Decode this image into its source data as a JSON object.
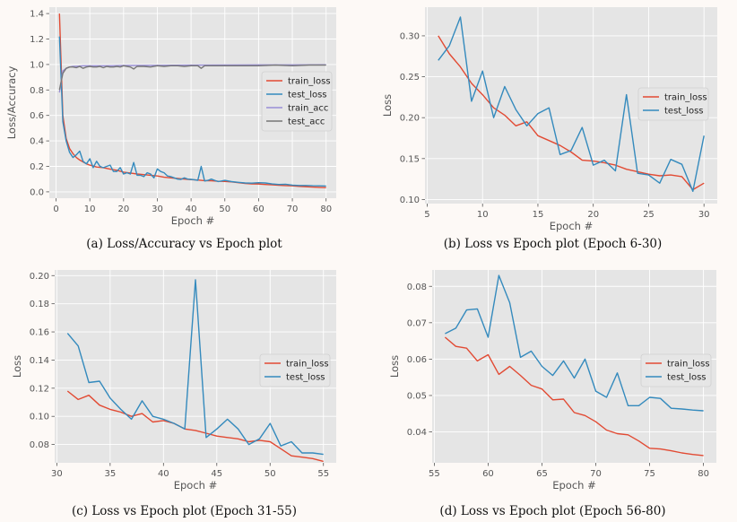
{
  "chart_data": [
    {
      "id": "a",
      "type": "line",
      "caption": "(a) Loss/Accuracy vs Epoch plot",
      "xlabel": "Epoch #",
      "ylabel": "Loss/Accuracy",
      "xlim": [
        -2,
        83
      ],
      "ylim": [
        -0.05,
        1.45
      ],
      "xticks": [
        0,
        10,
        20,
        30,
        40,
        50,
        60,
        70,
        80
      ],
      "yticks": [
        0.0,
        0.2,
        0.4,
        0.6,
        0.8,
        1.0,
        1.2,
        1.4
      ],
      "ytick_labels": [
        "0.0",
        "0.2",
        "0.4",
        "0.6",
        "0.8",
        "1.0",
        "1.2",
        "1.4"
      ],
      "grid": true,
      "legend": "center-right",
      "series": [
        {
          "name": "train_loss",
          "color": "#e24a33",
          "x": [
            1,
            2,
            3,
            4,
            5,
            6,
            7,
            8,
            9,
            10,
            12,
            14,
            16,
            18,
            20,
            22,
            24,
            26,
            28,
            30,
            32,
            34,
            36,
            38,
            40,
            42,
            44,
            46,
            48,
            50,
            52,
            54,
            56,
            58,
            60,
            62,
            64,
            66,
            68,
            70,
            72,
            74,
            76,
            78,
            80
          ],
          "y": [
            1.4,
            0.6,
            0.42,
            0.34,
            0.3,
            0.27,
            0.25,
            0.235,
            0.22,
            0.21,
            0.195,
            0.19,
            0.178,
            0.17,
            0.155,
            0.148,
            0.14,
            0.135,
            0.13,
            0.125,
            0.115,
            0.11,
            0.105,
            0.1,
            0.096,
            0.093,
            0.088,
            0.087,
            0.083,
            0.082,
            0.078,
            0.072,
            0.066,
            0.063,
            0.061,
            0.058,
            0.055,
            0.052,
            0.049,
            0.047,
            0.043,
            0.04,
            0.037,
            0.035,
            0.033
          ]
        },
        {
          "name": "test_loss",
          "color": "#348abd",
          "x": [
            1,
            2,
            3,
            4,
            5,
            6,
            7,
            8,
            9,
            10,
            11,
            12,
            13,
            14,
            15,
            16,
            17,
            18,
            19,
            20,
            21,
            22,
            23,
            24,
            25,
            26,
            27,
            28,
            29,
            30,
            31,
            32,
            33,
            34,
            35,
            36,
            37,
            38,
            39,
            40,
            41,
            42,
            43,
            44,
            45,
            46,
            47,
            48,
            49,
            50,
            52,
            54,
            56,
            58,
            60,
            62,
            64,
            66,
            68,
            70,
            72,
            74,
            76,
            78,
            80
          ],
          "y": [
            1.22,
            0.55,
            0.4,
            0.31,
            0.27,
            0.29,
            0.32,
            0.24,
            0.22,
            0.26,
            0.19,
            0.24,
            0.2,
            0.19,
            0.2,
            0.21,
            0.16,
            0.16,
            0.19,
            0.14,
            0.15,
            0.14,
            0.23,
            0.13,
            0.13,
            0.12,
            0.15,
            0.14,
            0.11,
            0.18,
            0.16,
            0.15,
            0.125,
            0.12,
            0.11,
            0.1,
            0.098,
            0.11,
            0.1,
            0.098,
            0.095,
            0.09,
            0.2,
            0.085,
            0.09,
            0.1,
            0.09,
            0.081,
            0.085,
            0.09,
            0.08,
            0.075,
            0.07,
            0.068,
            0.072,
            0.07,
            0.062,
            0.058,
            0.06,
            0.053,
            0.05,
            0.05,
            0.048,
            0.047,
            0.046
          ]
        },
        {
          "name": "train_acc",
          "color": "#988ed5",
          "x": [
            1,
            2,
            3,
            4,
            5,
            6,
            8,
            10,
            15,
            20,
            30,
            40,
            50,
            60,
            70,
            80
          ],
          "y": [
            0.78,
            0.95,
            0.97,
            0.98,
            0.985,
            0.985,
            0.99,
            0.99,
            0.99,
            0.992,
            0.994,
            0.995,
            0.996,
            0.997,
            0.997,
            0.998
          ]
        },
        {
          "name": "test_acc",
          "color": "#777777",
          "x": [
            1,
            2,
            3,
            4,
            5,
            6,
            7,
            8,
            9,
            10,
            11,
            12,
            13,
            14,
            15,
            16,
            17,
            18,
            19,
            20,
            21,
            22,
            23,
            24,
            26,
            28,
            30,
            32,
            34,
            36,
            38,
            40,
            42,
            43,
            44,
            46,
            48,
            50,
            55,
            60,
            65,
            70,
            75,
            80
          ],
          "y": [
            0.8,
            0.93,
            0.97,
            0.98,
            0.98,
            0.975,
            0.985,
            0.97,
            0.98,
            0.985,
            0.98,
            0.98,
            0.985,
            0.975,
            0.985,
            0.98,
            0.98,
            0.985,
            0.98,
            0.99,
            0.985,
            0.98,
            0.965,
            0.985,
            0.985,
            0.98,
            0.99,
            0.985,
            0.99,
            0.99,
            0.985,
            0.99,
            0.99,
            0.97,
            0.99,
            0.99,
            0.99,
            0.99,
            0.99,
            0.99,
            0.995,
            0.99,
            0.995,
            0.995
          ]
        }
      ]
    },
    {
      "id": "b",
      "type": "line",
      "caption": "(b) Loss vs Epoch plot (Epoch 6-30)",
      "xlabel": "Epoch #",
      "ylabel": "Loss",
      "xlim": [
        4.8,
        31.2
      ],
      "ylim": [
        0.095,
        0.335
      ],
      "xticks": [
        5,
        10,
        15,
        20,
        25,
        30
      ],
      "yticks": [
        0.1,
        0.15,
        0.2,
        0.25,
        0.3
      ],
      "ytick_labels": [
        "0.10",
        "0.15",
        "0.20",
        "0.25",
        "0.30"
      ],
      "grid": true,
      "legend": "center-right",
      "series": [
        {
          "name": "train_loss",
          "color": "#e24a33",
          "x": [
            6,
            7,
            8,
            9,
            10,
            11,
            12,
            13,
            14,
            15,
            16,
            17,
            18,
            19,
            20,
            21,
            22,
            23,
            24,
            25,
            26,
            27,
            28,
            29,
            30
          ],
          "y": [
            0.3,
            0.278,
            0.262,
            0.242,
            0.228,
            0.212,
            0.203,
            0.19,
            0.195,
            0.178,
            0.172,
            0.166,
            0.158,
            0.148,
            0.147,
            0.145,
            0.142,
            0.137,
            0.134,
            0.131,
            0.129,
            0.13,
            0.128,
            0.112,
            0.12
          ]
        },
        {
          "name": "test_loss",
          "color": "#348abd",
          "x": [
            6,
            7,
            8,
            9,
            10,
            11,
            12,
            13,
            14,
            15,
            16,
            17,
            18,
            19,
            20,
            21,
            22,
            23,
            24,
            25,
            26,
            27,
            28,
            29,
            30
          ],
          "y": [
            0.27,
            0.288,
            0.323,
            0.22,
            0.257,
            0.2,
            0.238,
            0.21,
            0.19,
            0.205,
            0.212,
            0.155,
            0.16,
            0.188,
            0.142,
            0.148,
            0.135,
            0.228,
            0.132,
            0.13,
            0.12,
            0.149,
            0.143,
            0.11,
            0.178
          ]
        }
      ]
    },
    {
      "id": "c",
      "type": "line",
      "caption": "(c) Loss vs Epoch plot (Epoch 31-55)",
      "xlabel": "Epoch #",
      "ylabel": "Loss",
      "xlim": [
        29.8,
        56.2
      ],
      "ylim": [
        0.067,
        0.204
      ],
      "xticks": [
        30,
        35,
        40,
        45,
        50,
        55
      ],
      "yticks": [
        0.08,
        0.1,
        0.12,
        0.14,
        0.16,
        0.18,
        0.2
      ],
      "ytick_labels": [
        "0.08",
        "0.10",
        "0.12",
        "0.14",
        "0.16",
        "0.18",
        "0.20"
      ],
      "grid": true,
      "legend": "center-right",
      "series": [
        {
          "name": "train_loss",
          "color": "#e24a33",
          "x": [
            31,
            32,
            33,
            34,
            35,
            36,
            37,
            38,
            39,
            40,
            41,
            42,
            43,
            44,
            45,
            46,
            47,
            48,
            49,
            50,
            51,
            52,
            53,
            54,
            55
          ],
          "y": [
            0.118,
            0.112,
            0.115,
            0.108,
            0.105,
            0.103,
            0.1,
            0.102,
            0.096,
            0.097,
            0.095,
            0.091,
            0.09,
            0.088,
            0.086,
            0.085,
            0.084,
            0.082,
            0.083,
            0.082,
            0.077,
            0.072,
            0.071,
            0.07,
            0.068
          ]
        },
        {
          "name": "test_loss",
          "color": "#348abd",
          "x": [
            31,
            32,
            33,
            34,
            35,
            36,
            37,
            38,
            39,
            40,
            41,
            42,
            43,
            44,
            45,
            46,
            47,
            48,
            49,
            50,
            51,
            52,
            53,
            54,
            55
          ],
          "y": [
            0.159,
            0.15,
            0.124,
            0.125,
            0.113,
            0.105,
            0.098,
            0.111,
            0.1,
            0.098,
            0.095,
            0.091,
            0.197,
            0.085,
            0.091,
            0.098,
            0.091,
            0.08,
            0.084,
            0.095,
            0.079,
            0.082,
            0.074,
            0.074,
            0.073
          ]
        }
      ]
    },
    {
      "id": "d",
      "type": "line",
      "caption": "(d) Loss vs Epoch plot (Epoch 56-80)",
      "xlabel": "Epoch #",
      "ylabel": "Loss",
      "xlim": [
        54.8,
        81.2
      ],
      "ylim": [
        0.0315,
        0.0845
      ],
      "xticks": [
        55,
        60,
        65,
        70,
        75,
        80
      ],
      "yticks": [
        0.04,
        0.05,
        0.06,
        0.07,
        0.08
      ],
      "ytick_labels": [
        "0.04",
        "0.05",
        "0.06",
        "0.07",
        "0.08"
      ],
      "grid": true,
      "legend": "center-right",
      "series": [
        {
          "name": "train_loss",
          "color": "#e24a33",
          "x": [
            56,
            57,
            58,
            59,
            60,
            61,
            62,
            63,
            64,
            65,
            66,
            67,
            68,
            69,
            70,
            71,
            72,
            73,
            74,
            75,
            76,
            77,
            78,
            79,
            80
          ],
          "y": [
            0.066,
            0.0635,
            0.063,
            0.0595,
            0.0612,
            0.0558,
            0.058,
            0.0555,
            0.0528,
            0.0518,
            0.0488,
            0.049,
            0.0453,
            0.0445,
            0.0428,
            0.0405,
            0.0395,
            0.0392,
            0.0375,
            0.0355,
            0.0353,
            0.0348,
            0.0342,
            0.0338,
            0.0335
          ]
        },
        {
          "name": "test_loss",
          "color": "#348abd",
          "x": [
            56,
            57,
            58,
            59,
            60,
            61,
            62,
            63,
            64,
            65,
            66,
            67,
            68,
            69,
            70,
            71,
            72,
            73,
            74,
            75,
            76,
            77,
            78,
            79,
            80
          ],
          "y": [
            0.067,
            0.0685,
            0.0735,
            0.0738,
            0.066,
            0.083,
            0.0755,
            0.0605,
            0.0622,
            0.058,
            0.0555,
            0.0595,
            0.0548,
            0.06,
            0.0512,
            0.0495,
            0.0562,
            0.0472,
            0.0472,
            0.0495,
            0.0492,
            0.0465,
            0.0463,
            0.046,
            0.0458
          ]
        }
      ]
    }
  ]
}
